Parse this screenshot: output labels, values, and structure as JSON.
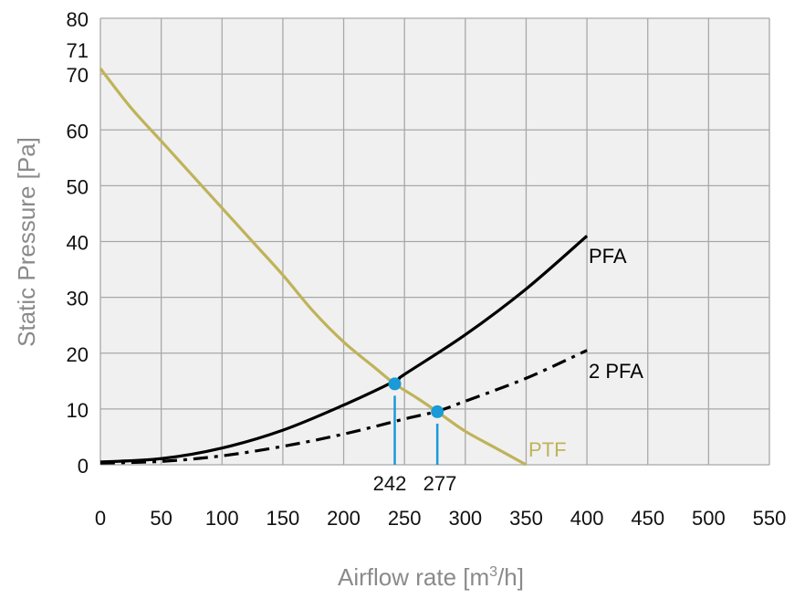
{
  "chart_data": {
    "type": "line",
    "title": "",
    "xlabel": "Airflow rate [m",
    "xlabel_sup": "3",
    "xlabel_end": "/h]",
    "ylabel": "Static Pressure [Pa]",
    "xlim": [
      0,
      550
    ],
    "ylim": [
      0,
      80
    ],
    "xticks": [
      0,
      50,
      100,
      150,
      200,
      250,
      300,
      350,
      400,
      450,
      500,
      550
    ],
    "yticks": [
      0,
      10,
      20,
      30,
      40,
      50,
      60,
      70,
      80
    ],
    "grid": true,
    "series": [
      {
        "name": "PTF",
        "color": "#bfb35a",
        "style": "solid",
        "x": [
          0,
          25,
          50,
          75,
          100,
          125,
          150,
          175,
          200,
          225,
          242,
          260,
          277,
          300,
          325,
          350
        ],
        "y": [
          71,
          64,
          58,
          52,
          46,
          40,
          34,
          27.5,
          22,
          17.5,
          14.5,
          12,
          9.5,
          6,
          3,
          0
        ]
      },
      {
        "name": "PFA",
        "color": "#000000",
        "style": "solid",
        "x": [
          0,
          50,
          100,
          150,
          200,
          242,
          250,
          300,
          350,
          400
        ],
        "y": [
          0.5,
          1.1,
          3,
          6.2,
          10.7,
          15,
          16.2,
          23.3,
          31.5,
          41
        ]
      },
      {
        "name": "2 PFA",
        "color": "#000000",
        "style": "dashdot",
        "x": [
          0,
          50,
          100,
          150,
          200,
          250,
          277,
          300,
          350,
          400
        ],
        "y": [
          0.3,
          0.6,
          1.6,
          3.3,
          5.5,
          8.2,
          9.6,
          11.4,
          15.5,
          20.5
        ]
      }
    ],
    "intersections": [
      {
        "x": 242,
        "y": 14.5,
        "label": "242"
      },
      {
        "x": 277,
        "y": 9.5,
        "label": "277"
      }
    ],
    "annotations": [
      {
        "text": "71",
        "x": 0,
        "y": 71
      }
    ],
    "marker_color": "#1a9ad6",
    "plot_background": "#f0f0f0",
    "grid_color": "#a8a8a8"
  }
}
